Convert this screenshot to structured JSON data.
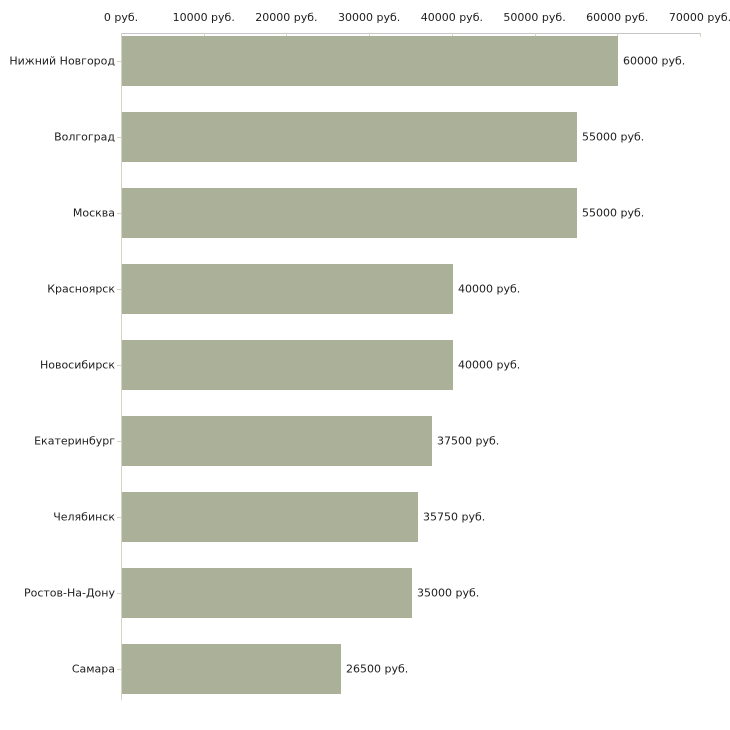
{
  "chart_data": {
    "type": "bar",
    "orientation": "horizontal",
    "title": "",
    "xlabel": "",
    "ylabel": "",
    "grid": false,
    "legend": false,
    "categories": [
      "Нижний Новгород",
      "Волгоград",
      "Москва",
      "Красноярск",
      "Новосибирск",
      "Екатеринбург",
      "Челябинск",
      "Ростов-На-Дону",
      "Самара"
    ],
    "values": [
      60000,
      55000,
      55000,
      40000,
      40000,
      37500,
      35750,
      35000,
      26500
    ],
    "value_labels": [
      "60000 руб.",
      "55000 руб.",
      "55000 руб.",
      "40000 руб.",
      "40000 руб.",
      "37500 руб.",
      "35750 руб.",
      "35000 руб.",
      "26500 руб."
    ],
    "xlim": [
      0,
      70000
    ],
    "x_ticks": [
      0,
      10000,
      20000,
      30000,
      40000,
      50000,
      60000,
      70000
    ],
    "x_tick_labels": [
      "0 руб.",
      "10000 руб.",
      "20000 руб.",
      "30000 руб.",
      "40000 руб.",
      "50000 руб.",
      "60000 руб.",
      "70000 руб."
    ],
    "axis_position": "top",
    "colors": {
      "bar": "#abb198",
      "axis_line": "#c6c6c6",
      "tick": "#d4d4c2",
      "text": "#1e1e1e",
      "background": "#ffffff"
    }
  }
}
